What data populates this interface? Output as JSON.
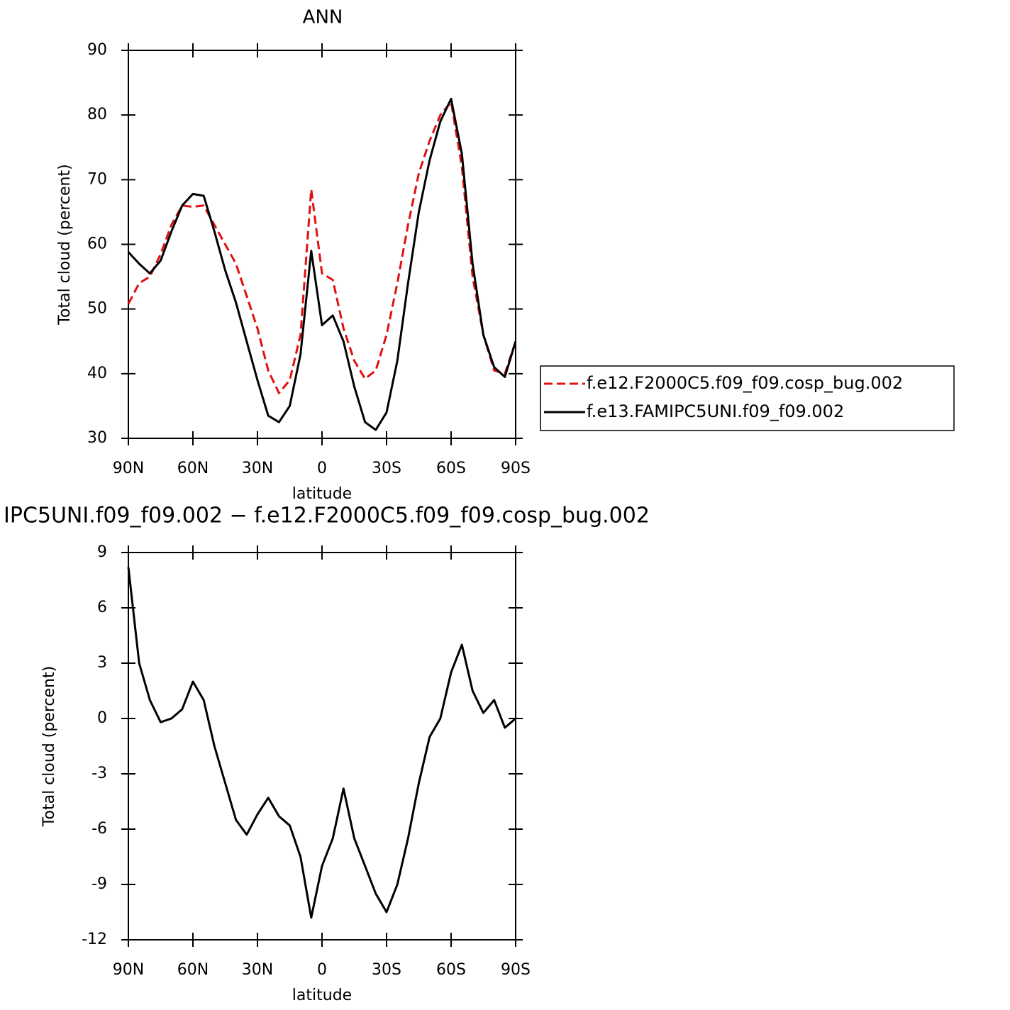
{
  "chart_data": [
    {
      "type": "line",
      "title": "ANN",
      "xlabel": "latitude",
      "ylabel": "Total cloud (percent)",
      "x": [
        90,
        85,
        80,
        75,
        70,
        65,
        60,
        55,
        50,
        45,
        40,
        35,
        30,
        25,
        20,
        15,
        10,
        5,
        0,
        -5,
        -10,
        -15,
        -20,
        -25,
        -30,
        -35,
        -40,
        -45,
        -50,
        -55,
        -60,
        -65,
        -70,
        -75,
        -80,
        -85,
        -90
      ],
      "series": [
        {
          "name": "f.e12.F2000C5.f09_f09.cosp_bug.002",
          "color": "#e01010",
          "dash": true,
          "values": [
            50.8,
            54,
            55,
            58.5,
            63,
            66,
            65.8,
            66,
            63,
            60,
            57,
            52,
            47,
            40.5,
            37,
            39,
            46,
            68.5,
            55.5,
            54.5,
            47,
            42,
            39.2,
            40.5,
            46,
            54,
            63,
            71,
            76,
            80,
            82,
            72,
            55,
            46,
            40.5,
            40,
            45
          ]
        },
        {
          "name": "f.e13.FAMIPC5UNI.f09_f09.002",
          "color": "#000000",
          "dash": false,
          "values": [
            58.8,
            57,
            55.5,
            57.5,
            62,
            66,
            67.8,
            67.5,
            62,
            56,
            51,
            45,
            39,
            33.5,
            32.5,
            35,
            43,
            59,
            47.5,
            49,
            45,
            38,
            32.5,
            31.3,
            34,
            42,
            54,
            65,
            73,
            79,
            82.5,
            74,
            57,
            46,
            41,
            39.5,
            45
          ]
        }
      ],
      "xlim": [
        90,
        -90
      ],
      "xticks": [
        {
          "value": 90,
          "label": "90N"
        },
        {
          "value": 60,
          "label": "60N"
        },
        {
          "value": 30,
          "label": "30N"
        },
        0,
        {
          "value": -30,
          "label": "30S"
        },
        {
          "value": -60,
          "label": "60S"
        },
        {
          "value": -90,
          "label": "90S"
        }
      ],
      "ylim": [
        30,
        90
      ],
      "yticks": [
        30,
        40,
        50,
        60,
        70,
        80,
        90
      ],
      "legend": "right"
    },
    {
      "type": "line",
      "title": "IPC5UNI.f09_f09.002 − f.e12.F2000C5.f09_f09.cosp_bug.002",
      "xlabel": "latitude",
      "ylabel": "Total cloud (percent)",
      "x": [
        90,
        85,
        80,
        75,
        70,
        65,
        60,
        55,
        50,
        45,
        40,
        35,
        30,
        25,
        20,
        15,
        10,
        5,
        0,
        -5,
        -10,
        -15,
        -20,
        -25,
        -30,
        -35,
        -40,
        -45,
        -50,
        -55,
        -60,
        -65,
        -70,
        -75,
        -80,
        -85,
        -90
      ],
      "values": [
        8.2,
        3.0,
        1.0,
        -0.2,
        0,
        0.5,
        2.0,
        1.0,
        -1.5,
        -3.5,
        -5.5,
        -6.3,
        -5.2,
        -4.3,
        -5.3,
        -5.8,
        -7.5,
        -10.8,
        -8,
        -6.5,
        -3.8,
        -6.5,
        -8,
        -9.5,
        -10.5,
        -9,
        -6.5,
        -3.5,
        -1,
        0,
        2.5,
        4,
        1.5,
        0.3,
        1.0,
        -0.5,
        0
      ],
      "color": "#000000",
      "xlim": [
        90,
        -90
      ],
      "xticks": [
        {
          "value": 90,
          "label": "90N"
        },
        {
          "value": 60,
          "label": "60N"
        },
        {
          "value": 30,
          "label": "30N"
        },
        0,
        {
          "value": -30,
          "label": "30S"
        },
        {
          "value": -60,
          "label": "60S"
        },
        {
          "value": -90,
          "label": "90S"
        }
      ],
      "ylim": [
        -12,
        9
      ],
      "yticks": [
        -12,
        -9,
        -6,
        -3,
        0,
        3,
        6,
        9
      ]
    }
  ]
}
